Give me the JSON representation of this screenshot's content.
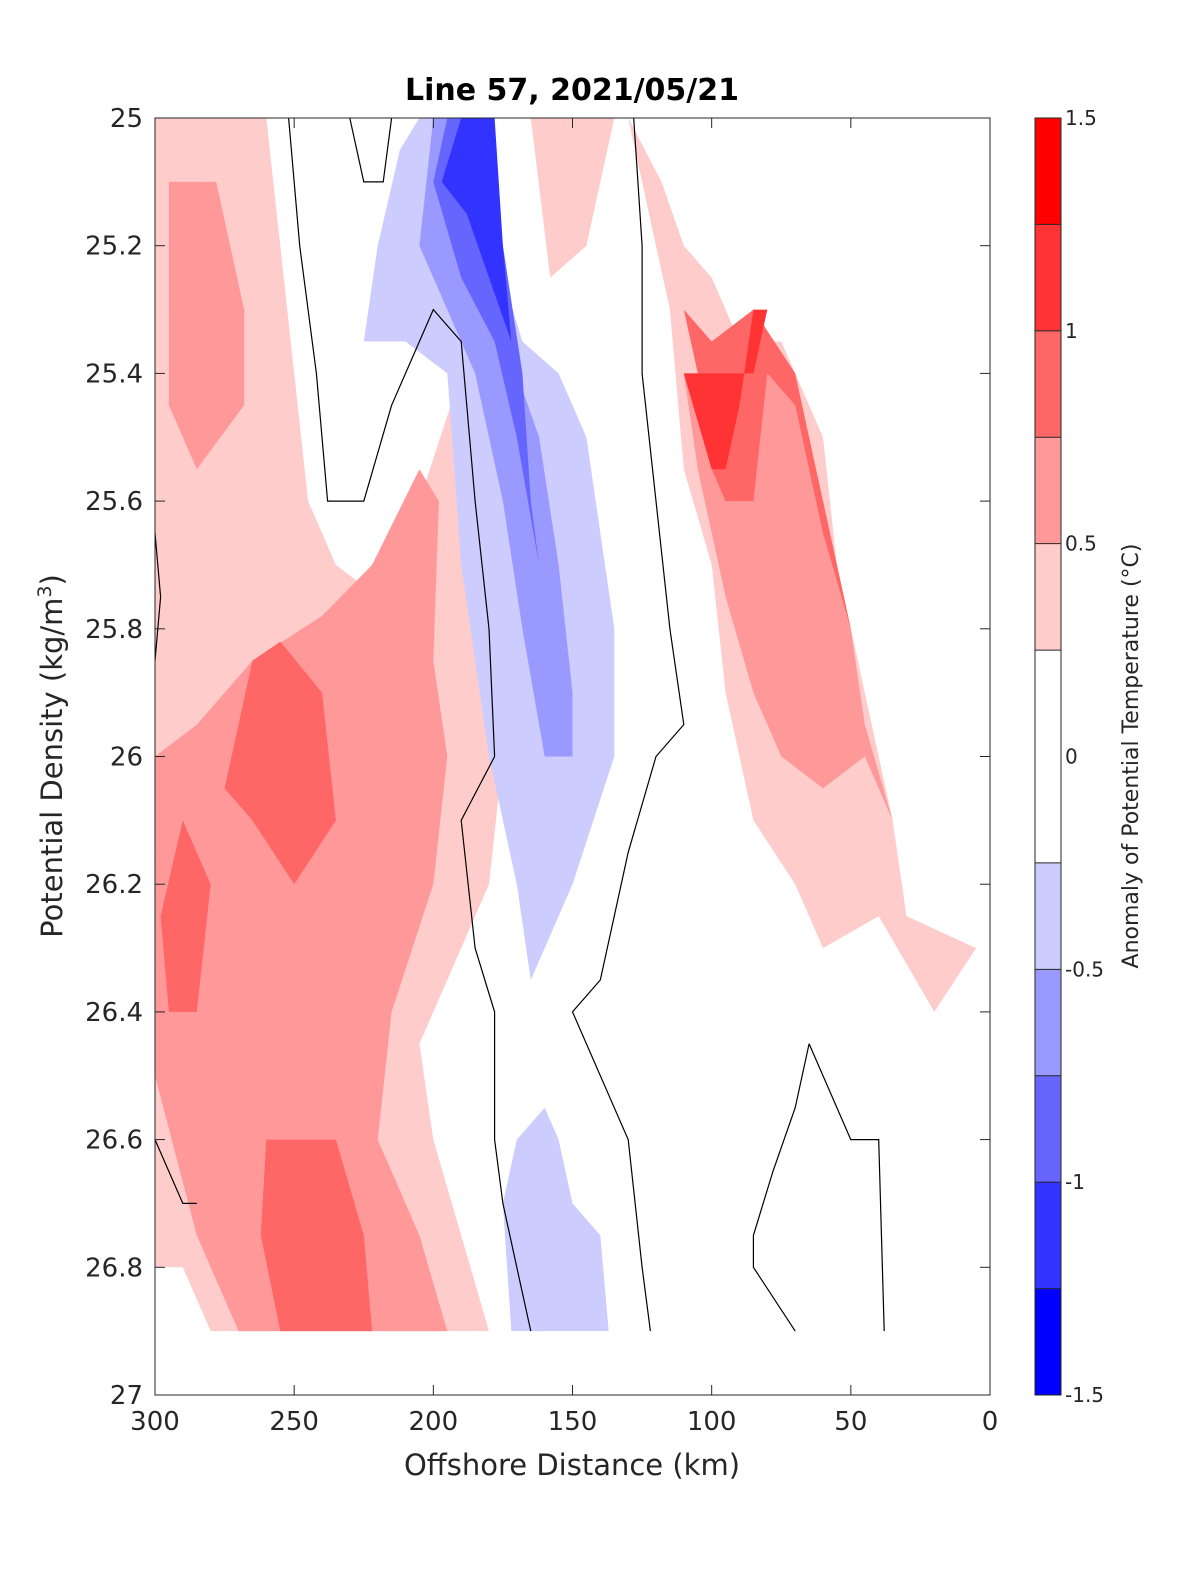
{
  "chart_data": {
    "type": "heatmap",
    "subtype": "filled-contour",
    "title": "Line 57, 2021/05/21",
    "xlabel": "Offshore Distance (km)",
    "ylabel_main": "Potential Density (kg/m",
    "ylabel_sup": "3",
    "ylabel_tail": ")",
    "xlim": [
      300,
      0
    ],
    "x_reversed": true,
    "ylim": [
      25,
      27
    ],
    "y_reversed": true,
    "x_ticks": [
      300,
      250,
      200,
      150,
      100,
      50,
      0
    ],
    "y_ticks": [
      25,
      25.2,
      25.4,
      25.6,
      25.8,
      26,
      26.2,
      26.4,
      26.6,
      26.8,
      27
    ],
    "y_tick_labels": [
      "25",
      "25.2",
      "25.4",
      "25.6",
      "25.8",
      "26",
      "26.2",
      "26.4",
      "26.6",
      "26.8",
      "27"
    ],
    "grid": false,
    "colorbar": {
      "label": "Anomaly of Potential Temperature (°C)",
      "placement": "right",
      "range": [
        -1.5,
        1.5
      ],
      "ticks": [
        1.5,
        1,
        0.5,
        0,
        -0.5,
        -1,
        -1.5
      ],
      "tick_labels": [
        "1.5",
        "1",
        "0.5",
        "0",
        "-0.5",
        "-1",
        "-1.5"
      ],
      "levels": [
        {
          "range": [
            1.25,
            1.5
          ],
          "color": "#ff0000"
        },
        {
          "range": [
            1.0,
            1.25
          ],
          "color": "#ff3333"
        },
        {
          "range": [
            0.75,
            1.0
          ],
          "color": "#ff6666"
        },
        {
          "range": [
            0.5,
            0.75
          ],
          "color": "#ff9999"
        },
        {
          "range": [
            0.25,
            0.5
          ],
          "color": "#ffcccc"
        },
        {
          "range": [
            -0.25,
            0.25
          ],
          "color": "#ffffff"
        },
        {
          "range": [
            -0.5,
            -0.25
          ],
          "color": "#ccccff"
        },
        {
          "range": [
            -0.75,
            -0.5
          ],
          "color": "#9999ff"
        },
        {
          "range": [
            -1.0,
            -0.75
          ],
          "color": "#6666ff"
        },
        {
          "range": [
            -1.25,
            -1.0
          ],
          "color": "#3333ff"
        },
        {
          "range": [
            -1.5,
            -1.25
          ],
          "color": "#0000ff"
        }
      ]
    },
    "regions": [
      {
        "level": 0.375,
        "color": "#ffcccc",
        "points": [
          [
            300,
            25
          ],
          [
            260,
            25
          ],
          [
            250,
            25.4
          ],
          [
            245,
            25.6
          ],
          [
            235,
            25.7
          ],
          [
            220,
            25.75
          ],
          [
            205,
            25.6
          ],
          [
            190,
            25.4
          ],
          [
            182,
            25.8
          ],
          [
            175,
            26
          ],
          [
            180,
            26.2
          ],
          [
            195,
            26.35
          ],
          [
            205,
            26.45
          ],
          [
            200,
            26.6
          ],
          [
            190,
            26.75
          ],
          [
            180,
            26.9
          ],
          [
            280,
            26.9
          ],
          [
            290,
            26.8
          ],
          [
            300,
            26.8
          ]
        ]
      },
      {
        "level": 0.625,
        "color": "#ff9999",
        "points": [
          [
            295,
            25.1
          ],
          [
            278,
            25.1
          ],
          [
            268,
            25.3
          ],
          [
            268,
            25.45
          ],
          [
            285,
            25.55
          ],
          [
            295,
            25.45
          ]
        ]
      },
      {
        "level": 0.625,
        "color": "#ff9999",
        "points": [
          [
            265,
            25.85
          ],
          [
            240,
            25.78
          ],
          [
            222,
            25.7
          ],
          [
            205,
            25.55
          ],
          [
            198,
            25.6
          ],
          [
            200,
            25.85
          ],
          [
            195,
            26.0
          ],
          [
            200,
            26.2
          ],
          [
            215,
            26.4
          ],
          [
            220,
            26.6
          ],
          [
            205,
            26.75
          ],
          [
            195,
            26.9
          ],
          [
            270,
            26.9
          ],
          [
            285,
            26.75
          ],
          [
            300,
            26.5
          ],
          [
            300,
            26.0
          ],
          [
            285,
            25.95
          ]
        ]
      },
      {
        "level": 0.875,
        "color": "#ff6666",
        "points": [
          [
            265,
            25.85
          ],
          [
            255,
            25.82
          ],
          [
            240,
            25.9
          ],
          [
            235,
            26.1
          ],
          [
            250,
            26.2
          ],
          [
            265,
            26.1
          ],
          [
            275,
            26.05
          ]
        ]
      },
      {
        "level": 0.875,
        "color": "#ff6666",
        "points": [
          [
            290,
            26.1
          ],
          [
            280,
            26.2
          ],
          [
            285,
            26.4
          ],
          [
            295,
            26.4
          ],
          [
            298,
            26.25
          ]
        ]
      },
      {
        "level": 0.875,
        "color": "#ff6666",
        "points": [
          [
            260,
            26.6
          ],
          [
            235,
            26.6
          ],
          [
            225,
            26.75
          ],
          [
            222,
            26.9
          ],
          [
            255,
            26.9
          ],
          [
            262,
            26.75
          ]
        ]
      },
      {
        "level": 0.625,
        "color": "#ff9999",
        "points": [
          [
            160,
            25.0
          ],
          [
            150,
            25.0
          ],
          [
            150,
            25.1
          ],
          [
            158,
            25.15
          ]
        ]
      },
      {
        "level": 0.375,
        "color": "#ffcccc",
        "points": [
          [
            165,
            25.0
          ],
          [
            135,
            25.0
          ],
          [
            145,
            25.2
          ],
          [
            158,
            25.25
          ]
        ]
      },
      {
        "level": 0.375,
        "color": "#ffcccc",
        "points": [
          [
            130,
            25.0
          ],
          [
            115,
            25.3
          ],
          [
            110,
            25.55
          ],
          [
            100,
            25.7
          ],
          [
            95,
            25.9
          ],
          [
            85,
            26.1
          ],
          [
            70,
            26.2
          ],
          [
            60,
            26.3
          ],
          [
            40,
            26.25
          ],
          [
            20,
            26.4
          ],
          [
            5,
            26.3
          ],
          [
            30,
            26.25
          ],
          [
            35,
            26.1
          ],
          [
            40,
            26.0
          ],
          [
            55,
            25.7
          ],
          [
            60,
            25.5
          ],
          [
            65,
            25.45
          ],
          [
            75,
            25.35
          ],
          [
            90,
            25.35
          ],
          [
            100,
            25.25
          ],
          [
            110,
            25.2
          ],
          [
            118,
            25.1
          ]
        ]
      },
      {
        "level": 0.625,
        "color": "#ff9999",
        "points": [
          [
            110,
            25.4
          ],
          [
            105,
            25.55
          ],
          [
            95,
            25.75
          ],
          [
            85,
            25.9
          ],
          [
            75,
            26.0
          ],
          [
            60,
            26.05
          ],
          [
            45,
            26.0
          ],
          [
            35,
            26.1
          ],
          [
            45,
            25.95
          ],
          [
            50,
            25.8
          ],
          [
            55,
            25.7
          ],
          [
            60,
            25.6
          ],
          [
            70,
            25.45
          ],
          [
            80,
            25.4
          ],
          [
            90,
            25.35
          ],
          [
            100,
            25.4
          ]
        ]
      },
      {
        "level": 0.875,
        "color": "#ff6666",
        "points": [
          [
            110,
            25.3
          ],
          [
            105,
            25.4
          ],
          [
            100,
            25.55
          ],
          [
            95,
            25.6
          ],
          [
            85,
            25.6
          ],
          [
            80,
            25.4
          ],
          [
            70,
            25.45
          ],
          [
            65,
            25.55
          ],
          [
            60,
            25.65
          ],
          [
            50,
            25.8
          ],
          [
            45,
            25.9
          ],
          [
            55,
            25.7
          ],
          [
            70,
            25.4
          ],
          [
            85,
            25.3
          ],
          [
            100,
            25.35
          ]
        ]
      },
      {
        "level": 1.125,
        "color": "#ff3333",
        "points": [
          [
            110,
            25.4
          ],
          [
            100,
            25.55
          ],
          [
            95,
            25.55
          ],
          [
            90,
            25.45
          ],
          [
            85,
            25.3
          ],
          [
            80,
            25.3
          ],
          [
            85,
            25.4
          ],
          [
            90,
            25.4
          ],
          [
            100,
            25.4
          ]
        ]
      },
      {
        "level": -0.375,
        "color": "#ccccff",
        "points": [
          [
            205,
            25.0
          ],
          [
            195,
            25.0
          ],
          [
            180,
            25.1
          ],
          [
            175,
            25.25
          ],
          [
            168,
            25.35
          ],
          [
            155,
            25.4
          ],
          [
            145,
            25.5
          ],
          [
            135,
            25.8
          ],
          [
            135,
            26.0
          ],
          [
            150,
            26.2
          ],
          [
            160,
            26.3
          ],
          [
            165,
            26.35
          ],
          [
            170,
            26.2
          ],
          [
            180,
            26.0
          ],
          [
            190,
            25.7
          ],
          [
            195,
            25.4
          ],
          [
            210,
            25.35
          ],
          [
            225,
            25.35
          ],
          [
            220,
            25.2
          ],
          [
            212,
            25.05
          ]
        ]
      },
      {
        "level": -0.625,
        "color": "#9999ff",
        "points": [
          [
            200,
            25.0
          ],
          [
            190,
            25.0
          ],
          [
            180,
            25.2
          ],
          [
            170,
            25.4
          ],
          [
            162,
            25.5
          ],
          [
            155,
            25.7
          ],
          [
            150,
            25.9
          ],
          [
            150,
            26.0
          ],
          [
            160,
            26.0
          ],
          [
            168,
            25.8
          ],
          [
            175,
            25.6
          ],
          [
            185,
            25.4
          ],
          [
            195,
            25.3
          ],
          [
            205,
            25.2
          ]
        ]
      },
      {
        "level": -0.875,
        "color": "#6666ff",
        "points": [
          [
            195,
            25.0
          ],
          [
            180,
            25.0
          ],
          [
            175,
            25.2
          ],
          [
            168,
            25.4
          ],
          [
            165,
            25.6
          ],
          [
            162,
            25.7
          ],
          [
            170,
            25.5
          ],
          [
            178,
            25.35
          ],
          [
            190,
            25.25
          ],
          [
            200,
            25.1
          ]
        ]
      },
      {
        "level": -1.125,
        "color": "#3333ff",
        "points": [
          [
            190,
            25.0
          ],
          [
            178,
            25.0
          ],
          [
            175,
            25.2
          ],
          [
            172,
            25.35
          ],
          [
            180,
            25.25
          ],
          [
            188,
            25.15
          ],
          [
            197,
            25.1
          ]
        ]
      },
      {
        "level": -0.375,
        "color": "#ccccff",
        "points": [
          [
            160,
            26.55
          ],
          [
            170,
            26.6
          ],
          [
            175,
            26.7
          ],
          [
            172,
            26.9
          ],
          [
            137,
            26.9
          ],
          [
            140,
            26.75
          ],
          [
            150,
            26.7
          ],
          [
            155,
            26.6
          ]
        ]
      }
    ],
    "contour_lines_zero": [
      [
        [
          252,
          25.0
        ],
        [
          248,
          25.2
        ],
        [
          242,
          25.4
        ],
        [
          238,
          25.6
        ],
        [
          225,
          25.6
        ],
        [
          215,
          25.45
        ],
        [
          200,
          25.3
        ],
        [
          190,
          25.35
        ],
        [
          185,
          25.6
        ],
        [
          180,
          25.8
        ],
        [
          178,
          26.0
        ],
        [
          190,
          26.1
        ],
        [
          185,
          26.3
        ],
        [
          178,
          26.4
        ],
        [
          178,
          26.6
        ],
        [
          175,
          26.7
        ],
        [
          170,
          26.8
        ],
        [
          165,
          26.9
        ]
      ],
      [
        [
          215,
          25.0
        ],
        [
          218,
          25.1
        ],
        [
          225,
          25.1
        ],
        [
          230,
          25.0
        ]
      ],
      [
        [
          128,
          25.0
        ],
        [
          125,
          25.2
        ],
        [
          125,
          25.4
        ],
        [
          120,
          25.6
        ],
        [
          115,
          25.8
        ],
        [
          110,
          25.95
        ],
        [
          120,
          26.0
        ],
        [
          130,
          26.15
        ],
        [
          140,
          26.35
        ],
        [
          150,
          26.4
        ],
        [
          130,
          26.6
        ],
        [
          125,
          26.8
        ],
        [
          122,
          26.9
        ]
      ],
      [
        [
          300,
          25.65
        ],
        [
          298,
          25.75
        ],
        [
          300,
          25.85
        ]
      ],
      [
        [
          300,
          26.6
        ],
        [
          290,
          26.7
        ],
        [
          285,
          26.7
        ]
      ],
      [
        [
          65,
          26.45
        ],
        [
          60,
          26.5
        ],
        [
          50,
          26.6
        ],
        [
          40,
          26.6
        ],
        [
          38,
          26.9
        ]
      ],
      [
        [
          65,
          26.45
        ],
        [
          70,
          26.55
        ],
        [
          78,
          26.65
        ],
        [
          85,
          26.75
        ],
        [
          85,
          26.8
        ],
        [
          70,
          26.9
        ]
      ]
    ]
  }
}
